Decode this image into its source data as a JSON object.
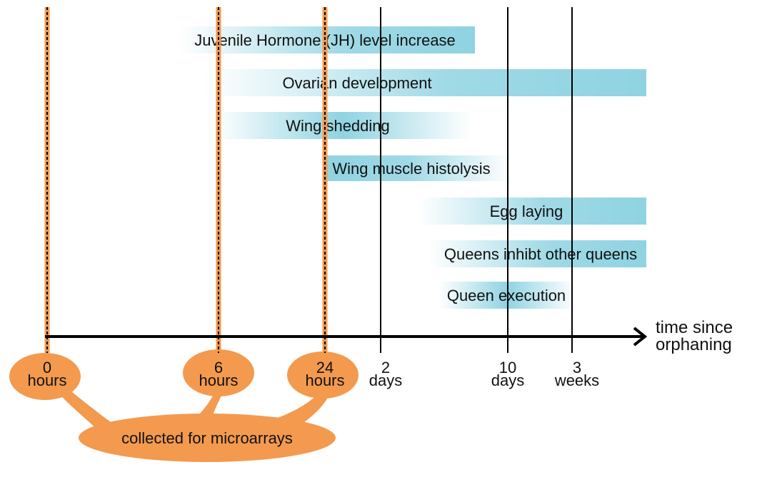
{
  "colors": {
    "bar_fill": "#8fd3e2",
    "highlight_orange": "#f39a4e",
    "axis": "#000000",
    "vline": "#000000"
  },
  "axis": {
    "title_line1": "time since",
    "title_line2": "orphaning"
  },
  "timepoints": [
    {
      "line1": "0",
      "line2": "hours",
      "highlighted": true
    },
    {
      "line1": "6",
      "line2": "hours",
      "highlighted": true
    },
    {
      "line1": "24",
      "line2": "hours",
      "highlighted": true
    },
    {
      "line1": "2",
      "line2": "days",
      "highlighted": false
    },
    {
      "line1": "10",
      "line2": "days",
      "highlighted": false
    },
    {
      "line1": "3",
      "line2": "weeks",
      "highlighted": false
    }
  ],
  "bars": [
    {
      "label": "Juvenile Hormone (JH) level increase",
      "fade": "left"
    },
    {
      "label": "Ovarian development",
      "fade": "left"
    },
    {
      "label": "Wing shedding",
      "fade": "both"
    },
    {
      "label": "Wing muscle histolysis",
      "fade": "right"
    },
    {
      "label": "Egg laying",
      "fade": "left"
    },
    {
      "label": "Queens inhibt other queens",
      "fade": "left"
    },
    {
      "label": "Queen execution",
      "fade": "both"
    }
  ],
  "collection": {
    "label": "collected for microarrays"
  }
}
